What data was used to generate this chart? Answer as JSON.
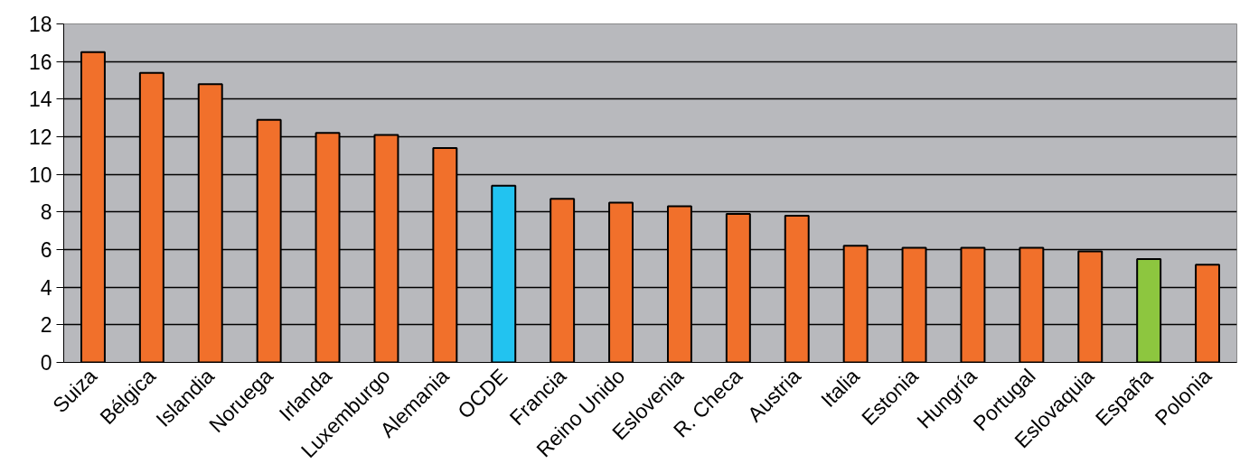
{
  "chart_data": {
    "type": "bar",
    "categories": [
      "Suiza",
      "Bélgica",
      "Islandia",
      "Noruega",
      "Irlanda",
      "Luxemburgo",
      "Alemania",
      "OCDE",
      "Francia",
      "Reino Unido",
      "Eslovenia",
      "R. Checa",
      "Austria",
      "Italia",
      "Estonia",
      "Hungría",
      "Portugal",
      "Eslovaquia",
      "España",
      "Polonia"
    ],
    "values": [
      16.5,
      15.4,
      14.8,
      12.9,
      12.2,
      12.1,
      11.4,
      9.4,
      8.7,
      8.5,
      8.3,
      7.9,
      7.8,
      6.2,
      6.1,
      6.1,
      6.1,
      5.9,
      5.5,
      5.2
    ],
    "colors": [
      "#f1702b",
      "#f1702b",
      "#f1702b",
      "#f1702b",
      "#f1702b",
      "#f1702b",
      "#f1702b",
      "#22c3f0",
      "#f1702b",
      "#f1702b",
      "#f1702b",
      "#f1702b",
      "#f1702b",
      "#f1702b",
      "#f1702b",
      "#f1702b",
      "#f1702b",
      "#f1702b",
      "#8dc63f",
      "#f1702b"
    ],
    "ylim": [
      0,
      18
    ],
    "yticks": [
      0,
      2,
      4,
      6,
      8,
      10,
      12,
      14,
      16,
      18
    ],
    "grid": "y"
  }
}
